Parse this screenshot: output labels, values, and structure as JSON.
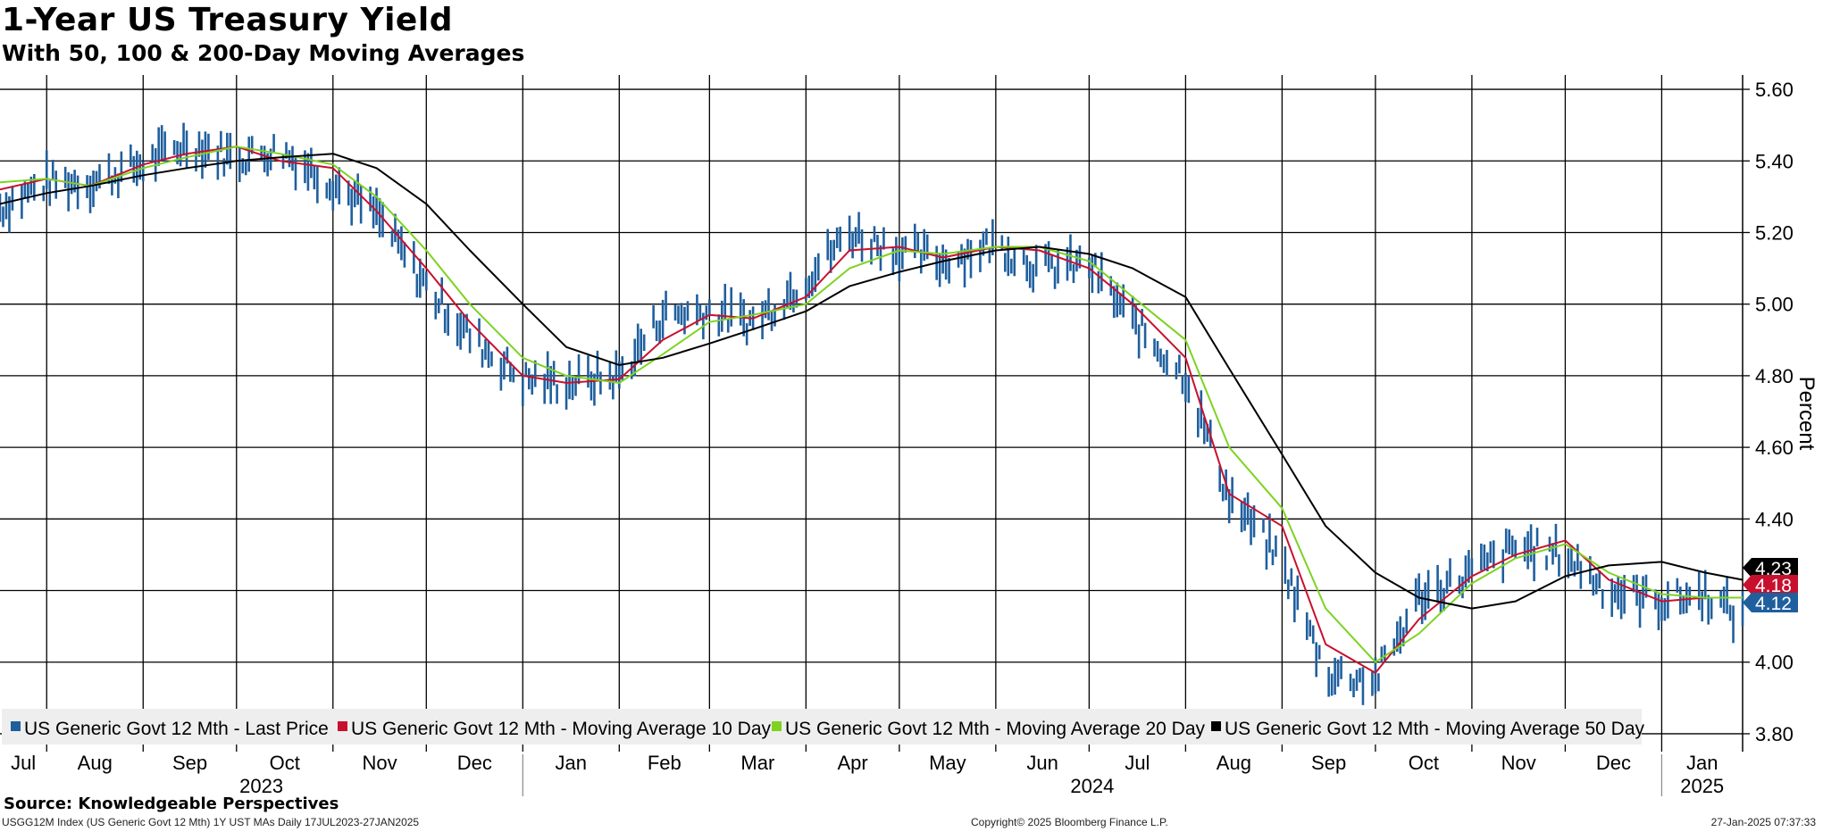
{
  "header": {
    "title": "1-Year US Treasury Yield",
    "subtitle": "With 50, 100 & 200-Day Moving Averages"
  },
  "footer": {
    "source": "Source: Knowledgeable Perspectives",
    "ticker": "USGG12M Index (US Generic Govt 12 Mth) 1Y UST MAs  Daily 17JUL2023-27JAN2025",
    "copyright": "Copyright© 2025 Bloomberg Finance L.P.",
    "timestamp": "27-Jan-2025 07:37:33"
  },
  "colors": {
    "last_price": "#1f5f9e",
    "ma10": "#c8102e",
    "ma20": "#7ed321",
    "ma50": "#000000",
    "grid": "#000000"
  },
  "chart_data": {
    "type": "line",
    "ylabel": "Percent",
    "ylim": [
      3.75,
      5.64
    ],
    "yticks": [
      "5.60",
      "5.40",
      "5.20",
      "5.00",
      "4.80",
      "4.60",
      "4.40",
      "4.20",
      "4.00",
      "3.80"
    ],
    "x_months": [
      "Jul",
      "Aug",
      "Sep",
      "Oct",
      "Nov",
      "Dec",
      "Jan",
      "Feb",
      "Mar",
      "Apr",
      "May",
      "Jun",
      "Jul",
      "Aug",
      "Sep",
      "Oct",
      "Nov",
      "Dec",
      "Jan"
    ],
    "x_years": [
      "2023",
      "2024",
      "2025"
    ],
    "xlim": [
      "2023-07-17",
      "2025-01-27"
    ],
    "legend_position": "bottom-left",
    "last_values": [
      {
        "series": "ma50",
        "label": "4.23"
      },
      {
        "series": "ma10",
        "label": "4.18"
      },
      {
        "series": "last_price",
        "label": "4.12"
      }
    ],
    "series": [
      {
        "name": "US Generic Govt 12 Mth - Last Price",
        "key": "last_price",
        "style": "bars",
        "x": [
          "2023-07-17",
          "2023-08-01",
          "2023-08-15",
          "2023-09-01",
          "2023-09-15",
          "2023-10-01",
          "2023-10-15",
          "2023-11-01",
          "2023-11-15",
          "2023-12-01",
          "2023-12-15",
          "2024-01-01",
          "2024-01-15",
          "2024-02-01",
          "2024-02-15",
          "2024-03-01",
          "2024-03-15",
          "2024-04-01",
          "2024-04-15",
          "2024-05-01",
          "2024-05-15",
          "2024-06-01",
          "2024-06-15",
          "2024-07-01",
          "2024-07-15",
          "2024-08-01",
          "2024-08-15",
          "2024-09-01",
          "2024-09-15",
          "2024-10-01",
          "2024-10-15",
          "2024-11-01",
          "2024-11-15",
          "2024-12-01",
          "2024-12-15",
          "2025-01-01",
          "2025-01-15",
          "2025-01-27"
        ],
        "y": [
          5.27,
          5.34,
          5.34,
          5.39,
          5.45,
          5.41,
          5.43,
          5.34,
          5.25,
          5.05,
          4.91,
          4.79,
          4.78,
          4.8,
          4.97,
          4.98,
          4.95,
          5.07,
          5.2,
          5.15,
          5.12,
          5.17,
          5.1,
          5.11,
          4.95,
          4.8,
          4.46,
          4.28,
          3.97,
          3.95,
          4.18,
          4.25,
          4.32,
          4.3,
          4.2,
          4.17,
          4.19,
          4.12
        ]
      },
      {
        "name": "US Generic Govt 12 Mth - Moving Average 10 Day",
        "key": "ma10",
        "style": "line",
        "x": [
          "2023-07-17",
          "2023-08-01",
          "2023-08-15",
          "2023-09-01",
          "2023-09-15",
          "2023-10-01",
          "2023-10-15",
          "2023-11-01",
          "2023-11-15",
          "2023-12-01",
          "2023-12-15",
          "2024-01-01",
          "2024-01-15",
          "2024-02-01",
          "2024-02-15",
          "2024-03-01",
          "2024-03-15",
          "2024-04-01",
          "2024-04-15",
          "2024-05-01",
          "2024-05-15",
          "2024-06-01",
          "2024-06-15",
          "2024-07-01",
          "2024-07-15",
          "2024-08-01",
          "2024-08-15",
          "2024-09-01",
          "2024-09-15",
          "2024-10-01",
          "2024-10-15",
          "2024-11-01",
          "2024-11-15",
          "2024-12-01",
          "2024-12-15",
          "2025-01-01",
          "2025-01-15",
          "2025-01-27"
        ],
        "y": [
          5.32,
          5.35,
          5.33,
          5.39,
          5.42,
          5.44,
          5.4,
          5.38,
          5.26,
          5.1,
          4.95,
          4.8,
          4.78,
          4.79,
          4.9,
          4.97,
          4.96,
          5.02,
          5.15,
          5.16,
          5.13,
          5.16,
          5.15,
          5.1,
          5.0,
          4.85,
          4.47,
          4.38,
          4.05,
          3.97,
          4.12,
          4.24,
          4.3,
          4.34,
          4.23,
          4.17,
          4.18,
          4.18
        ]
      },
      {
        "name": "US Generic Govt 12 Mth - Moving Average 20 Day",
        "key": "ma20",
        "style": "line",
        "x": [
          "2023-07-17",
          "2023-08-01",
          "2023-08-15",
          "2023-09-01",
          "2023-09-15",
          "2023-10-01",
          "2023-10-15",
          "2023-11-01",
          "2023-11-15",
          "2023-12-01",
          "2023-12-15",
          "2024-01-01",
          "2024-01-15",
          "2024-02-01",
          "2024-02-15",
          "2024-03-01",
          "2024-03-15",
          "2024-04-01",
          "2024-04-15",
          "2024-05-01",
          "2024-05-15",
          "2024-06-01",
          "2024-06-15",
          "2024-07-01",
          "2024-07-15",
          "2024-08-01",
          "2024-08-15",
          "2024-09-01",
          "2024-09-15",
          "2024-10-01",
          "2024-10-15",
          "2024-11-01",
          "2024-11-15",
          "2024-12-01",
          "2024-12-15",
          "2025-01-01",
          "2025-01-15",
          "2025-01-27"
        ],
        "y": [
          5.34,
          5.35,
          5.33,
          5.38,
          5.41,
          5.44,
          5.42,
          5.39,
          5.3,
          5.15,
          5.0,
          4.85,
          4.8,
          4.78,
          4.86,
          4.95,
          4.97,
          5.0,
          5.1,
          5.15,
          5.14,
          5.16,
          5.16,
          5.12,
          5.02,
          4.9,
          4.6,
          4.43,
          4.15,
          4.0,
          4.08,
          4.22,
          4.29,
          4.33,
          4.25,
          4.19,
          4.18,
          4.18
        ]
      },
      {
        "name": "US Generic Govt 12 Mth - Moving Average 50 Day",
        "key": "ma50",
        "style": "line",
        "x": [
          "2023-07-17",
          "2023-08-01",
          "2023-08-15",
          "2023-09-01",
          "2023-09-15",
          "2023-10-01",
          "2023-10-15",
          "2023-11-01",
          "2023-11-15",
          "2023-12-01",
          "2023-12-15",
          "2024-01-01",
          "2024-01-15",
          "2024-02-01",
          "2024-02-15",
          "2024-03-01",
          "2024-03-15",
          "2024-04-01",
          "2024-04-15",
          "2024-05-01",
          "2024-05-15",
          "2024-06-01",
          "2024-06-15",
          "2024-07-01",
          "2024-07-15",
          "2024-08-01",
          "2024-08-15",
          "2024-09-01",
          "2024-09-15",
          "2024-10-01",
          "2024-10-15",
          "2024-11-01",
          "2024-11-15",
          "2024-12-01",
          "2024-12-15",
          "2025-01-01",
          "2025-01-15",
          "2025-01-27"
        ],
        "y": [
          5.28,
          5.31,
          5.33,
          5.36,
          5.38,
          5.4,
          5.41,
          5.42,
          5.38,
          5.28,
          5.15,
          5.0,
          4.88,
          4.83,
          4.85,
          4.89,
          4.93,
          4.98,
          5.05,
          5.09,
          5.12,
          5.15,
          5.16,
          5.14,
          5.1,
          5.02,
          4.82,
          4.58,
          4.38,
          4.25,
          4.18,
          4.15,
          4.17,
          4.24,
          4.27,
          4.28,
          4.25,
          4.23
        ]
      }
    ]
  }
}
